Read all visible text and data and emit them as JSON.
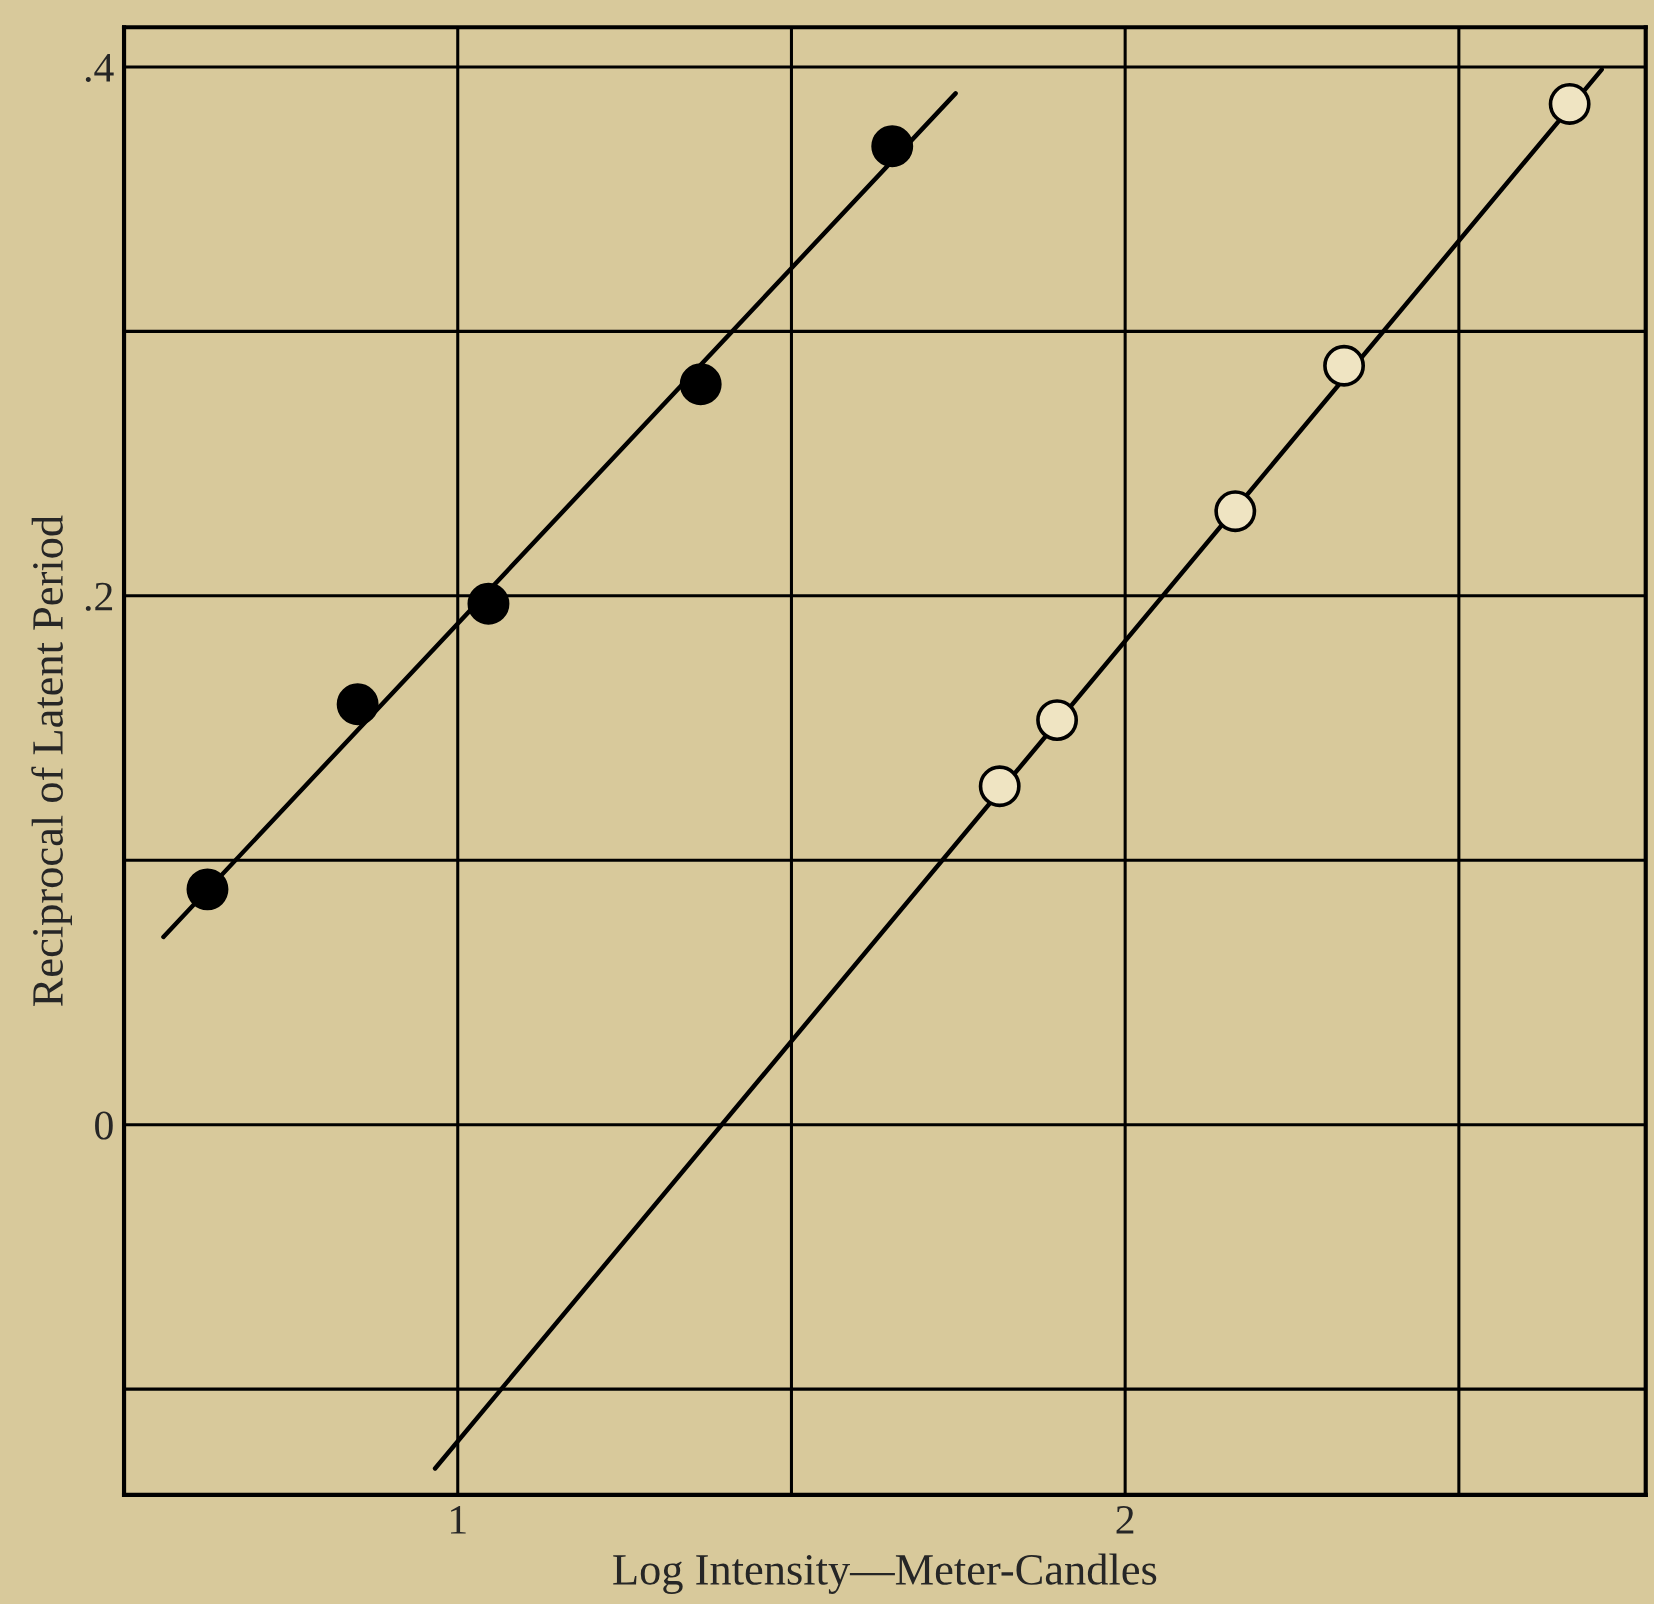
{
  "chart_data": {
    "type": "scatter",
    "xlabel": "Log Intensity—Meter-Candles",
    "ylabel": "Reciprocal of Latent Period",
    "xlim": [
      0.5,
      2.78
    ],
    "ylim": [
      -0.14,
      0.415
    ],
    "xticks": [
      {
        "value": 0.5,
        "label": null
      },
      {
        "value": 1,
        "label": "1"
      },
      {
        "value": 1.5,
        "label": null
      },
      {
        "value": 2,
        "label": "2"
      },
      {
        "value": 2.5,
        "label": null
      }
    ],
    "yticks": [
      {
        "value": -0.1,
        "label": null
      },
      {
        "value": 0,
        "label": "0"
      },
      {
        "value": 0.1,
        "label": null
      },
      {
        "value": 0.2,
        "label": ".2"
      },
      {
        "value": 0.3,
        "label": null
      },
      {
        "value": 0.4,
        "label": ".4"
      }
    ],
    "grid": true,
    "series": [
      {
        "marker": "circle",
        "color": "#000000",
        "x": [
          0.625,
          0.85,
          1.046,
          1.364,
          1.651
        ],
        "values": [
          0.089,
          0.159,
          0.197,
          0.28,
          0.37
        ]
      },
      {
        "marker": "circle",
        "color": "#efe4c2",
        "x": [
          1.812,
          1.898,
          2.165,
          2.328,
          2.666
        ],
        "values": [
          0.128,
          0.153,
          0.232,
          0.287,
          0.386
        ]
      },
      {
        "type": "line",
        "marker": "none",
        "color": "#000000",
        "x": [
          0.559,
          1.746
        ],
        "values": [
          0.071,
          0.39
        ]
      },
      {
        "type": "line",
        "marker": "none",
        "color": "#000000",
        "x": [
          0.966,
          2.714
        ],
        "values": [
          -0.13,
          0.399
        ]
      }
    ]
  }
}
